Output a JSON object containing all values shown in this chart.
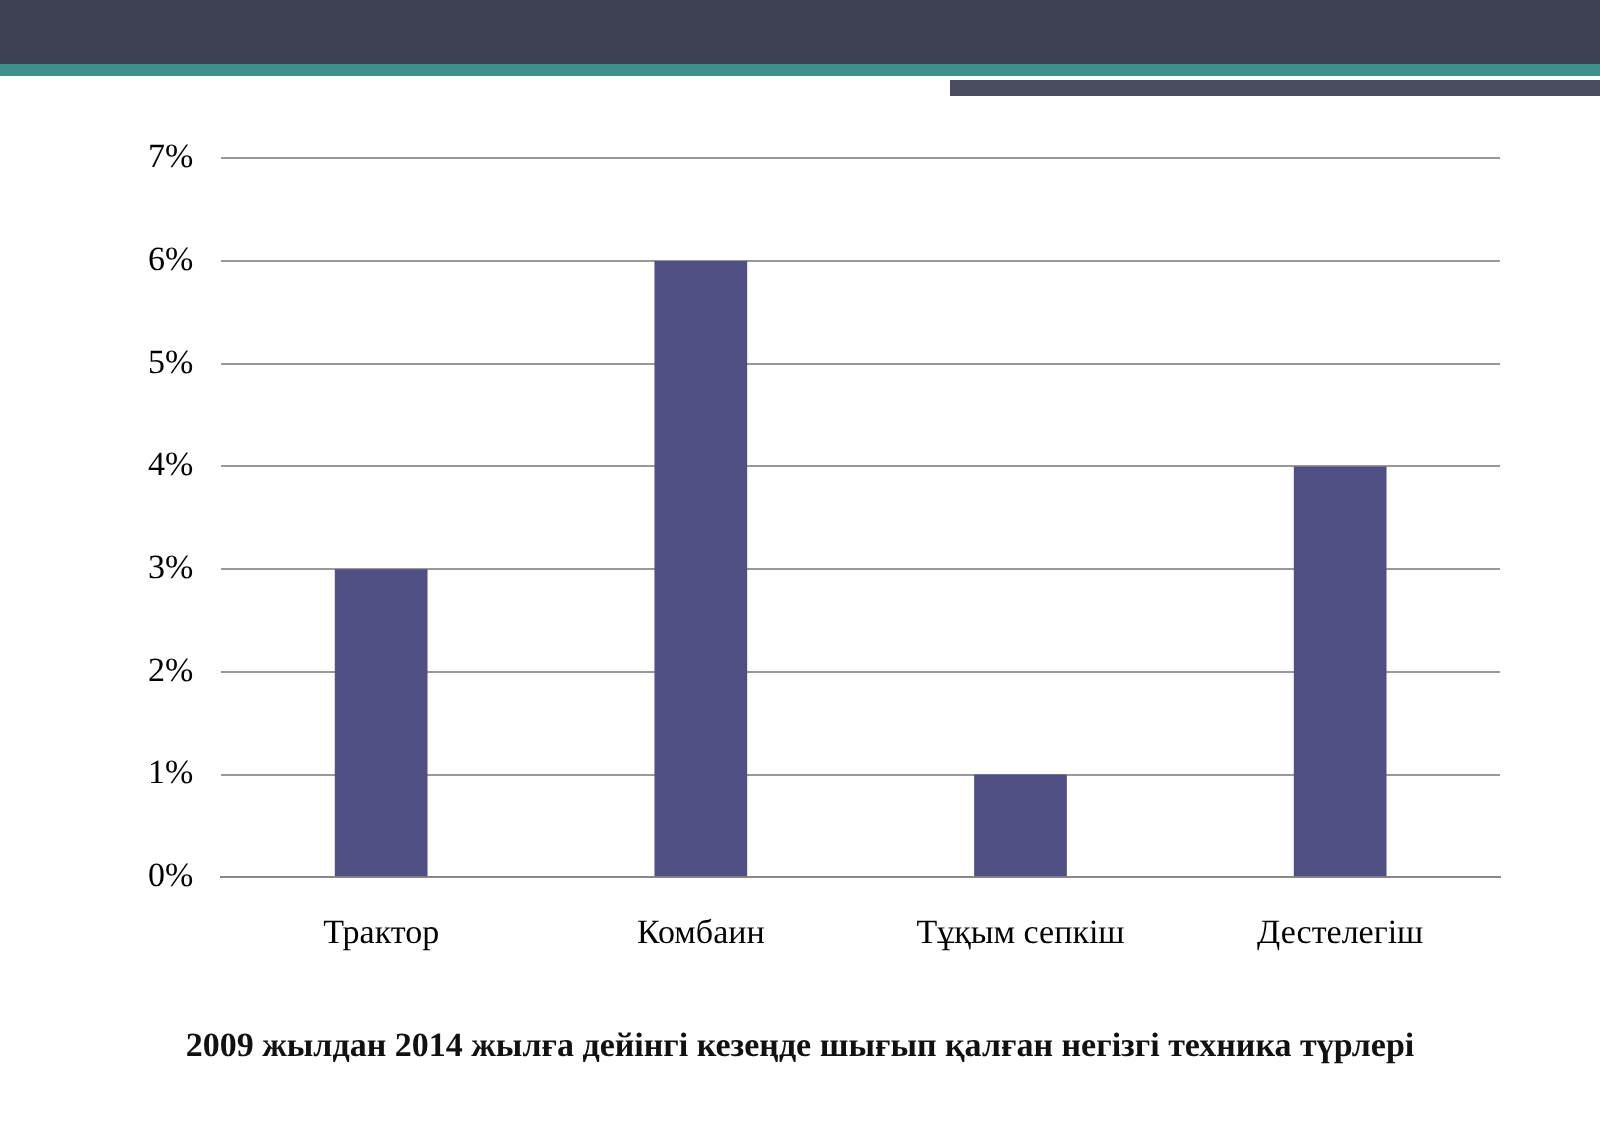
{
  "chart_data": {
    "type": "bar",
    "title": "2009 жылдан 2014 жылға дейінгі кезеңде шығып қалған негізгі техника түрлері",
    "categories": [
      "Трактор",
      "Комбаин",
      "Тұқым сепкіш",
      "Дестелегіш"
    ],
    "values": [
      3,
      6,
      1,
      4
    ],
    "color": "#4f4f83",
    "ylim": [
      0,
      7
    ],
    "yticks": [
      {
        "value": 0,
        "label": "0%"
      },
      {
        "value": 1,
        "label": "1%"
      },
      {
        "value": 2,
        "label": "2%"
      },
      {
        "value": 3,
        "label": "3%"
      },
      {
        "value": 4,
        "label": "4%"
      },
      {
        "value": 5,
        "label": "5%"
      },
      {
        "value": 6,
        "label": "6%"
      },
      {
        "value": 7,
        "label": "7%"
      }
    ],
    "grid": "y",
    "legend": false
  }
}
